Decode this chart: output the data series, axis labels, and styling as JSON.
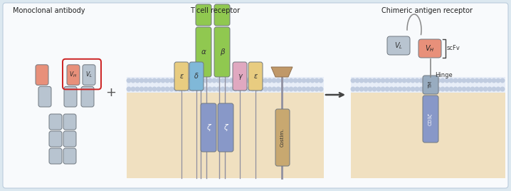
{
  "bg_outer": "#dce8f0",
  "bg_inner": "#f8fafc",
  "membrane_dot_color": "#c0cce0",
  "cytoplasm_color": "#f0e0c0",
  "title1": "Monoclonal antibody",
  "title2": "T cell receptor",
  "title3": "Chimeric antigen receptor",
  "ab_gray": "#b8c4d0",
  "ab_gray_light": "#d0d8e0",
  "ab_orange": "#e8907a",
  "tcr_green": "#90c850",
  "tcr_green_dark": "#78b038",
  "tcr_yellow": "#e8cc80",
  "tcr_blue": "#80b8d8",
  "tcr_pink": "#e0a8c0",
  "tcr_brown": "#c09868",
  "tcr_zeta_blue": "#8898c8",
  "costim_tan": "#c8a870",
  "tm_gray": "#98acc0",
  "cd3_blue": "#8898c8",
  "red_box": "#cc2222",
  "linker_gray": "#888888",
  "membrane_color": "#d0d8f0",
  "arrow_color": "#444444",
  "stem_gray": "#9090a0"
}
